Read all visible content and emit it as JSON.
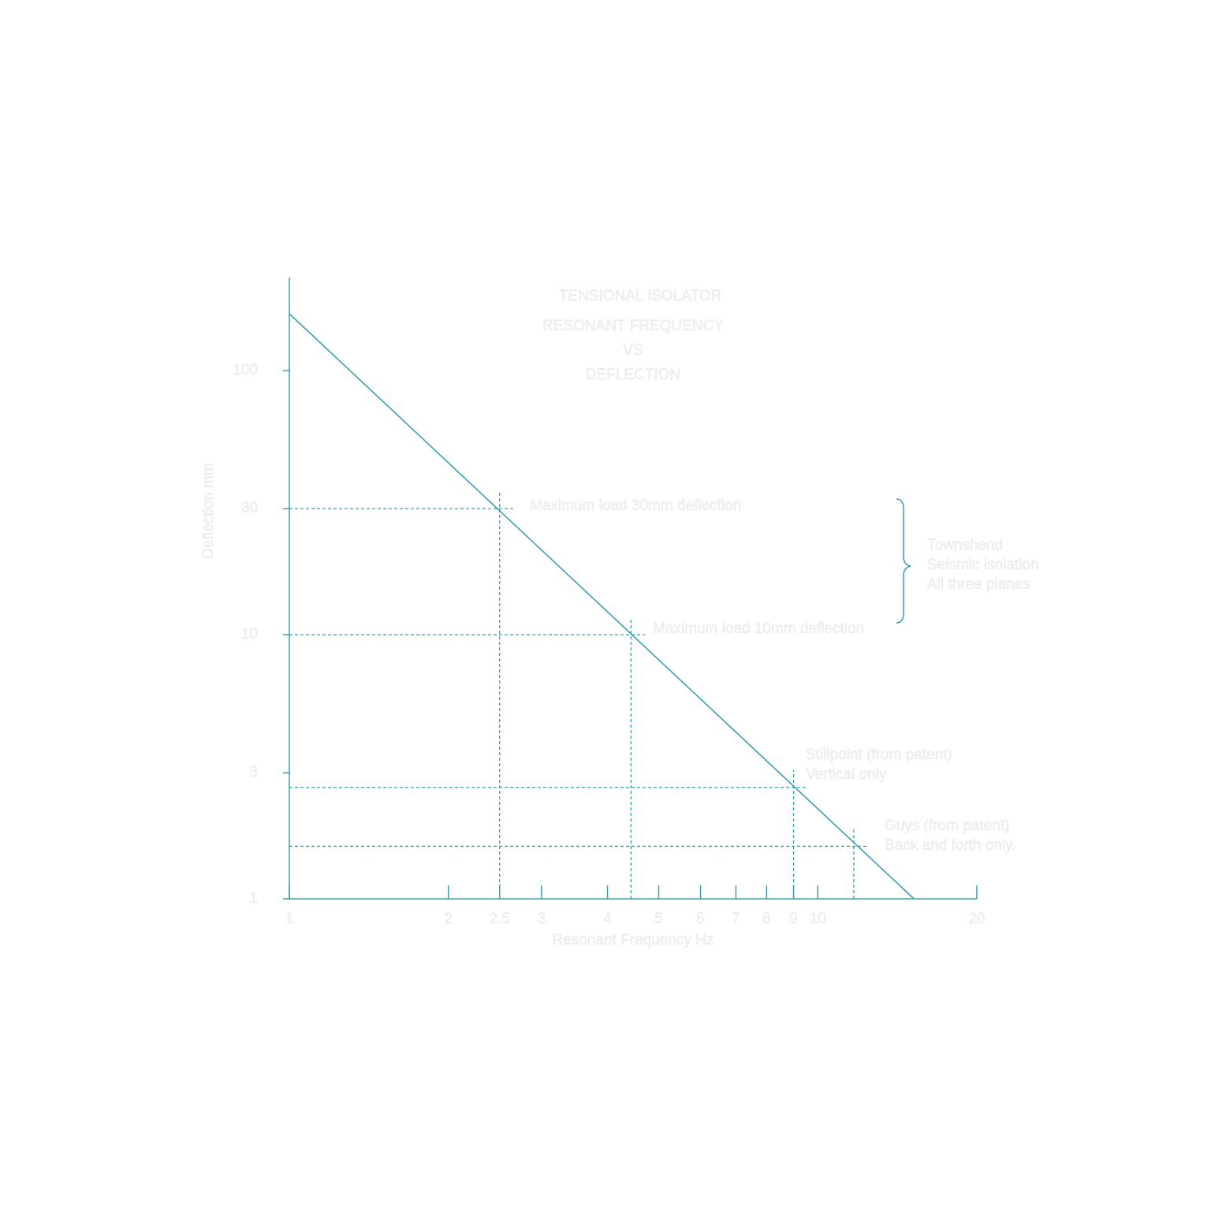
{
  "chart_data": {
    "type": "line",
    "log_x": true,
    "log_y": true,
    "title": "TENSIONAL ISOLATOR",
    "subtitle": [
      "RESONANT FREQUENCY",
      "VS",
      "DEFLECTION"
    ],
    "x_label": "Resonant Frequency Hz",
    "y_label": "Deflection mm",
    "xlim": [
      1,
      20
    ],
    "ylim": [
      1,
      225
    ],
    "xticks": [
      1,
      2,
      2.5,
      3,
      4,
      5,
      6,
      7,
      8,
      9,
      10,
      20
    ],
    "yticks": [
      1,
      3,
      10,
      30,
      100
    ],
    "series": [
      {
        "color": "#3a9fb0",
        "x": [
          1,
          15.2
        ],
        "values": [
          164,
          1
        ]
      }
    ],
    "markers": {
      "x": [
        2.5,
        4.43,
        9,
        11.7
      ],
      "y": [
        30,
        10,
        2.64,
        1.58
      ]
    },
    "annotations": [
      "Maximum load 30mm deflection",
      "Maximum load 10mm deflection",
      "Stillpoint (from patent)",
      "Vertical only",
      "Guys (from patent)",
      "Back and forth only.",
      "Townshend",
      "Seismic isolation",
      "All three planes"
    ]
  }
}
